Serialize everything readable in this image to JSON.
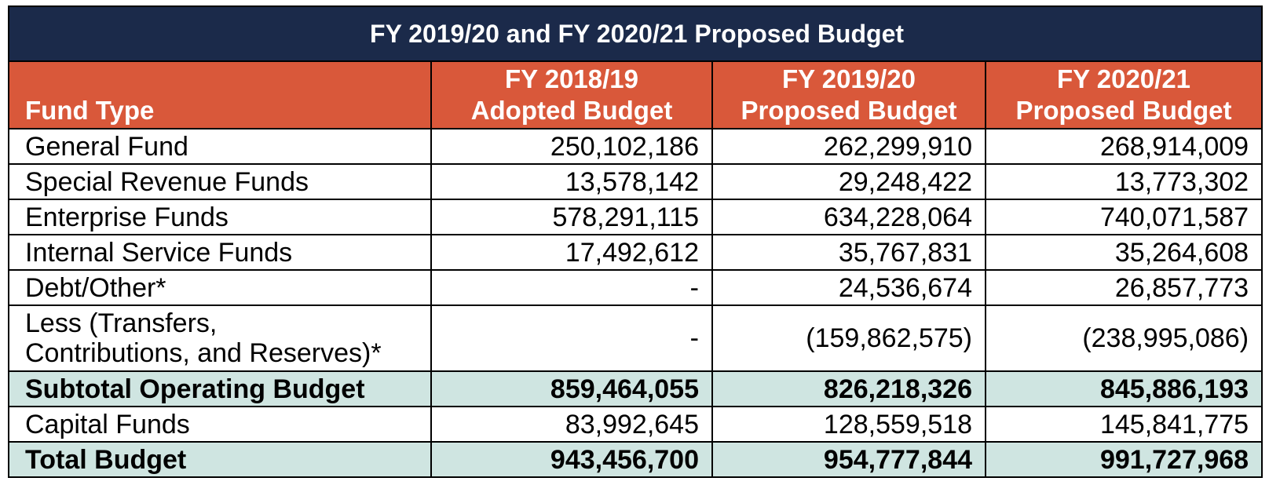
{
  "title": "FY 2019/20 and FY 2020/21 Proposed Budget",
  "headers": {
    "fund_type": "Fund Type",
    "col1_line1": "FY 2018/19",
    "col1_line2": "Adopted Budget",
    "col2_line1": "FY 2019/20",
    "col2_line2": "Proposed Budget",
    "col3_line1": "FY 2020/21",
    "col3_line2": "Proposed Budget"
  },
  "rows": [
    {
      "label": "General Fund",
      "v1": "250,102,186",
      "v2": "262,299,910",
      "v3": "268,914,009"
    },
    {
      "label": "Special Revenue Funds",
      "v1": "13,578,142",
      "v2": "29,248,422",
      "v3": "13,773,302"
    },
    {
      "label": "Enterprise Funds",
      "v1": "578,291,115",
      "v2": "634,228,064",
      "v3": "740,071,587"
    },
    {
      "label": "Internal Service Funds",
      "v1": "17,492,612",
      "v2": "35,767,831",
      "v3": "35,264,608"
    },
    {
      "label": "Debt/Other*",
      "v1": "-",
      "v2": "24,536,674",
      "v3": "26,857,773"
    },
    {
      "label_line1": "Less (Transfers,",
      "label_line2": "Contributions, and Reserves)*",
      "v1": "-",
      "v2": "(159,862,575)",
      "v3": "(238,995,086)"
    },
    {
      "label": "Subtotal Operating Budget",
      "v1": "859,464,055",
      "v2": "826,218,326",
      "v3": "845,886,193"
    },
    {
      "label": "Capital Funds",
      "v1": "83,992,645",
      "v2": "128,559,518",
      "v3": "145,841,775"
    },
    {
      "label": "Total Budget",
      "v1": "943,456,700",
      "v2": "954,777,844",
      "v3": "991,727,968"
    }
  ],
  "colors": {
    "title_bg": "#1b2a4a",
    "header_bg": "#d9583a",
    "subtotal_bg": "#cfe5e1"
  }
}
